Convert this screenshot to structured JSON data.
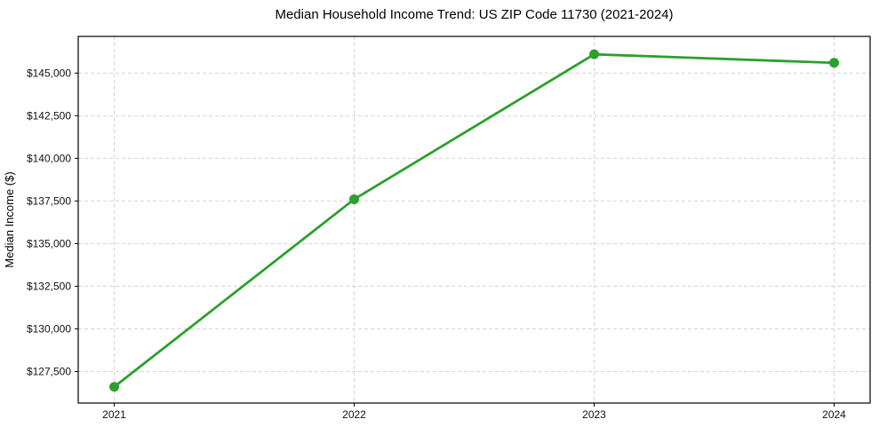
{
  "figure": {
    "title": "Median Household Income Trend: US ZIP Code 11730 (2021-2024)",
    "ylabel": "Median Income ($)"
  },
  "chart_data": {
    "type": "line",
    "title": "Median Household Income Trend: US ZIP Code 11730 (2021-2024)",
    "xlabel": "",
    "ylabel": "Median Income ($)",
    "x": [
      2021,
      2022,
      2023,
      2024
    ],
    "x_tick_labels": [
      "2021",
      "2022",
      "2023",
      "2024"
    ],
    "series": [
      {
        "name": "Median Household Income",
        "values": [
          126600,
          137600,
          146100,
          145600
        ]
      }
    ],
    "y_ticks": [
      127500,
      130000,
      132500,
      135000,
      137500,
      140000,
      142500,
      145000
    ],
    "y_tick_labels": [
      "$127,500",
      "$130,000",
      "$132,500",
      "$135,000",
      "$137,500",
      "$140,000",
      "$142,500",
      "$145,000"
    ],
    "xlim": [
      2020.85,
      2024.15
    ],
    "ylim": [
      125650,
      147150
    ],
    "grid": true,
    "legend": "none",
    "line_color": "#2ca02c",
    "marker": "circle",
    "grid_color": "#d3d3d3",
    "axis_color": "#000000",
    "background_color": "#ffffff"
  }
}
